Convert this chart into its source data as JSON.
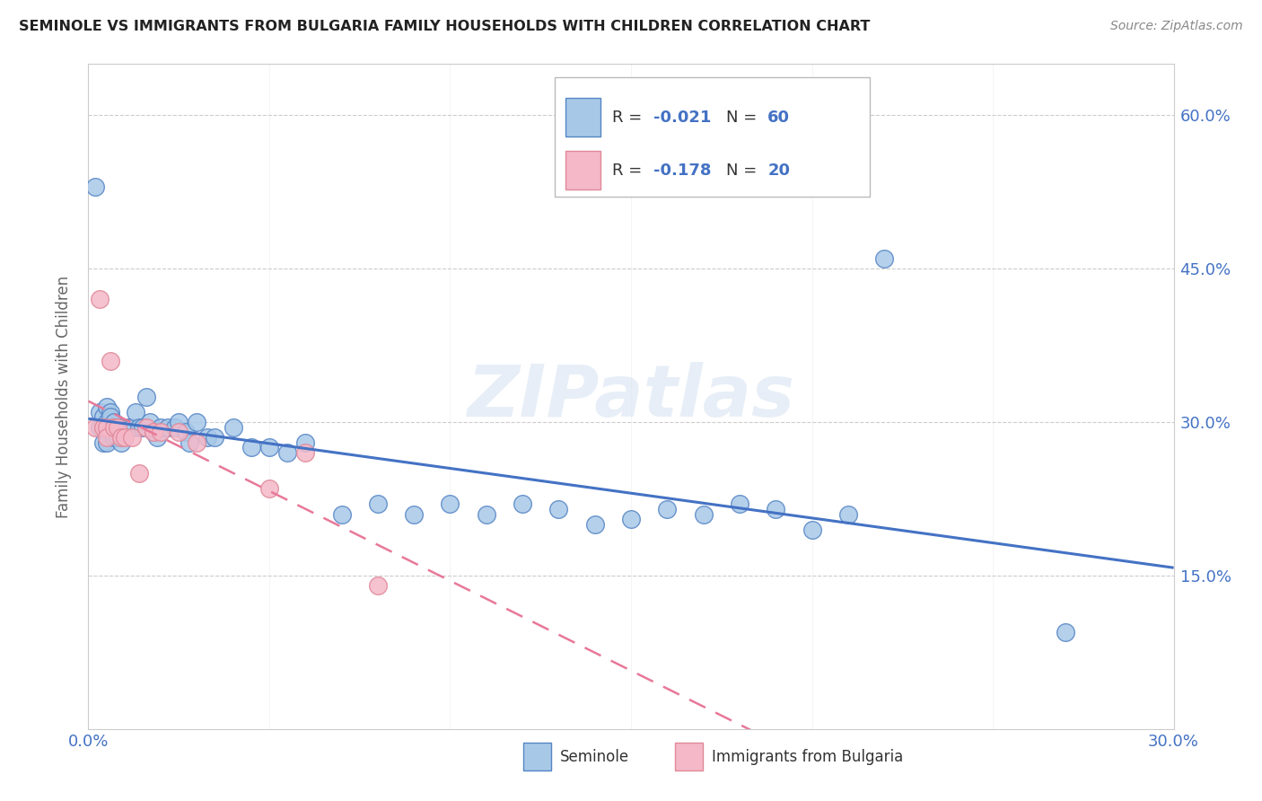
{
  "title": "SEMINOLE VS IMMIGRANTS FROM BULGARIA FAMILY HOUSEHOLDS WITH CHILDREN CORRELATION CHART",
  "source": "Source: ZipAtlas.com",
  "ylabel": "Family Households with Children",
  "xlim": [
    0.0,
    0.3
  ],
  "ylim": [
    0.0,
    0.65
  ],
  "xticks": [
    0.0,
    0.05,
    0.1,
    0.15,
    0.2,
    0.25,
    0.3
  ],
  "yticks": [
    0.0,
    0.15,
    0.3,
    0.45,
    0.6
  ],
  "ytick_labels_right": [
    "",
    "15.0%",
    "30.0%",
    "45.0%",
    "60.0%"
  ],
  "seminole_color": "#a8c8e8",
  "bulgaria_color": "#f4b8c8",
  "seminole_edge_color": "#5585c5",
  "bulgaria_edge_color": "#e08898",
  "seminole_line_color": "#4472c4",
  "bulgaria_line_color": "#e87898",
  "watermark": "ZIPatlas",
  "seminole_x": [
    0.002,
    0.003,
    0.003,
    0.004,
    0.004,
    0.004,
    0.005,
    0.005,
    0.005,
    0.005,
    0.006,
    0.006,
    0.007,
    0.007,
    0.007,
    0.008,
    0.008,
    0.009,
    0.009,
    0.01,
    0.011,
    0.012,
    0.013,
    0.014,
    0.015,
    0.016,
    0.017,
    0.018,
    0.019,
    0.02,
    0.022,
    0.024,
    0.025,
    0.027,
    0.028,
    0.03,
    0.033,
    0.035,
    0.04,
    0.045,
    0.05,
    0.055,
    0.06,
    0.07,
    0.08,
    0.09,
    0.1,
    0.11,
    0.12,
    0.13,
    0.14,
    0.15,
    0.16,
    0.17,
    0.18,
    0.19,
    0.2,
    0.21,
    0.22,
    0.27
  ],
  "seminole_y": [
    0.53,
    0.295,
    0.31,
    0.305,
    0.295,
    0.28,
    0.315,
    0.3,
    0.29,
    0.28,
    0.31,
    0.305,
    0.3,
    0.295,
    0.285,
    0.295,
    0.285,
    0.295,
    0.28,
    0.29,
    0.295,
    0.295,
    0.31,
    0.295,
    0.295,
    0.325,
    0.3,
    0.29,
    0.285,
    0.295,
    0.295,
    0.295,
    0.3,
    0.29,
    0.28,
    0.3,
    0.285,
    0.285,
    0.295,
    0.275,
    0.275,
    0.27,
    0.28,
    0.21,
    0.22,
    0.21,
    0.22,
    0.21,
    0.22,
    0.215,
    0.2,
    0.205,
    0.215,
    0.21,
    0.22,
    0.215,
    0.195,
    0.21,
    0.46,
    0.095
  ],
  "bulgaria_x": [
    0.002,
    0.003,
    0.004,
    0.005,
    0.005,
    0.006,
    0.007,
    0.008,
    0.009,
    0.01,
    0.012,
    0.014,
    0.016,
    0.018,
    0.02,
    0.025,
    0.03,
    0.05,
    0.06,
    0.08
  ],
  "bulgaria_y": [
    0.295,
    0.42,
    0.295,
    0.295,
    0.285,
    0.36,
    0.295,
    0.295,
    0.285,
    0.285,
    0.285,
    0.25,
    0.295,
    0.29,
    0.29,
    0.29,
    0.28,
    0.235,
    0.27,
    0.14
  ],
  "background_color": "#ffffff",
  "grid_color": "#cccccc"
}
